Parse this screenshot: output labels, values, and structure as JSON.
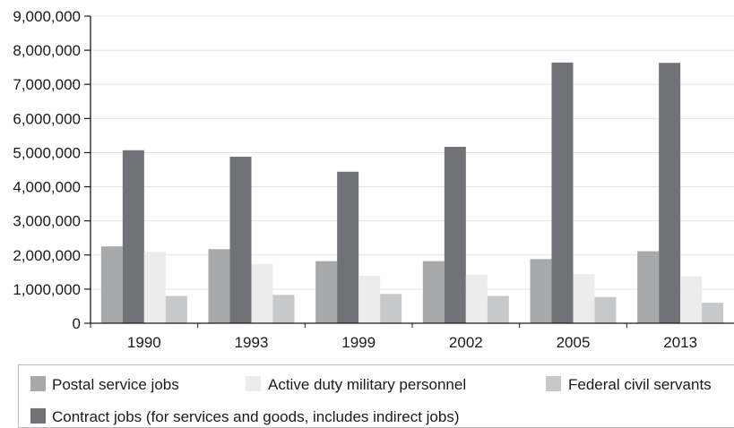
{
  "chart_data": {
    "type": "bar",
    "categories": [
      "1990",
      "1993",
      "1999",
      "2002",
      "2005",
      "2013"
    ],
    "ylim": [
      0,
      9000000
    ],
    "yticks": [
      0,
      1000000,
      2000000,
      3000000,
      4000000,
      5000000,
      6000000,
      7000000,
      8000000,
      9000000
    ],
    "ytick_labels": [
      "0",
      "1,000,000",
      "2,000,000",
      "3,000,000",
      "4,000,000",
      "5,000,000",
      "6,000,000",
      "7,000,000",
      "8,000,000",
      "9,000,000"
    ],
    "grid": true,
    "legend_position": "bottom",
    "series": [
      {
        "name": "Postal service jobs",
        "color": "#a8a9ab",
        "values": [
          2250000,
          2170000,
          1820000,
          1820000,
          1880000,
          2110000
        ]
      },
      {
        "name": "Contract jobs (for services and goods, includes indirect jobs)",
        "color": "#717275",
        "values": [
          5070000,
          4880000,
          4440000,
          5170000,
          7640000,
          7630000
        ]
      },
      {
        "name": "Active duty military personnel",
        "color": "#ececed",
        "values": [
          2090000,
          1740000,
          1390000,
          1430000,
          1440000,
          1380000
        ]
      },
      {
        "name": "Federal civil servants",
        "color": "#c7c8ca",
        "values": [
          800000,
          830000,
          860000,
          800000,
          770000,
          600000
        ]
      }
    ],
    "legend_order": [
      0,
      2,
      3,
      1
    ]
  }
}
